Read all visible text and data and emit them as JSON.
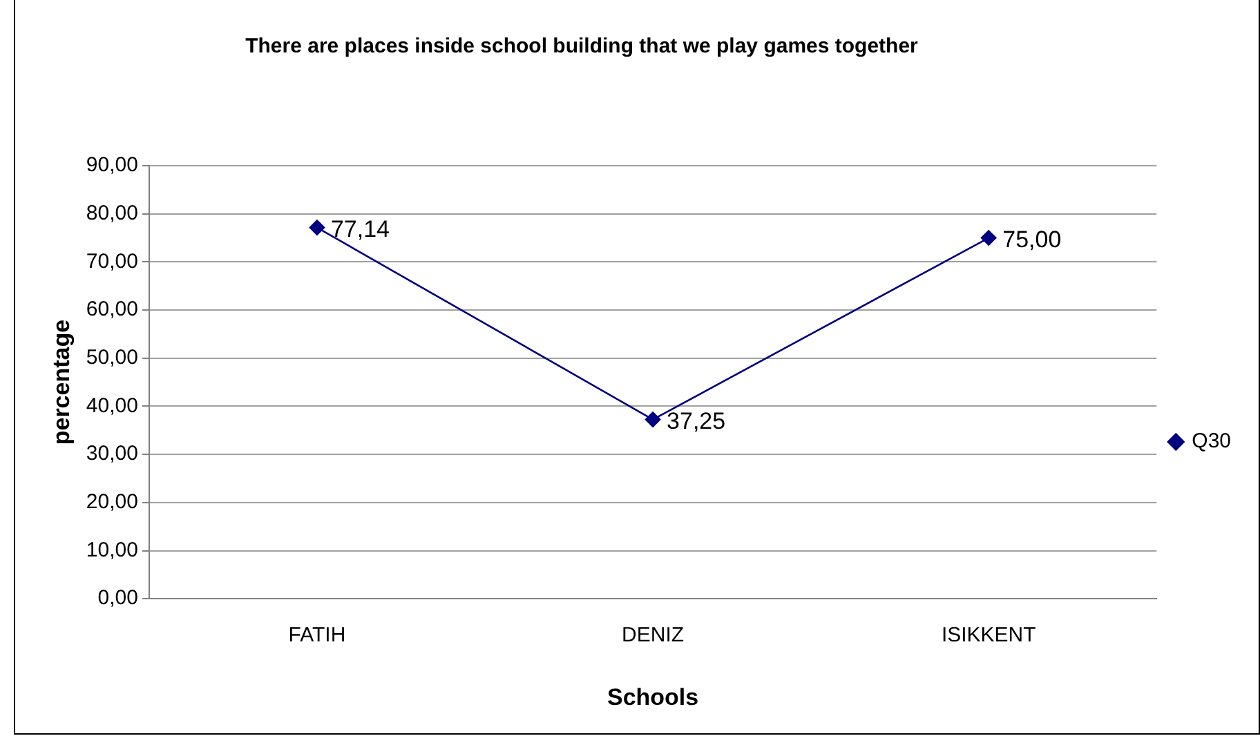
{
  "chart_data": {
    "type": "line",
    "title": "There are places inside school building that we play games together",
    "xlabel": "Schools",
    "ylabel": "percentage",
    "categories": [
      "FATIH",
      "DENIZ",
      "ISIKKENT"
    ],
    "series": [
      {
        "name": "Q30",
        "color": "#000080",
        "values": [
          77.14,
          37.25,
          75.0
        ],
        "value_labels": [
          "77,14",
          "37,25",
          "75,00"
        ]
      }
    ],
    "ylim": [
      0,
      90
    ],
    "yticks": [
      {
        "value": 0,
        "label": "0,00"
      },
      {
        "value": 10,
        "label": "10,00"
      },
      {
        "value": 20,
        "label": "20,00"
      },
      {
        "value": 30,
        "label": "30,00"
      },
      {
        "value": 40,
        "label": "40,00"
      },
      {
        "value": 50,
        "label": "50,00"
      },
      {
        "value": 60,
        "label": "60,00"
      },
      {
        "value": 70,
        "label": "70,00"
      },
      {
        "value": 80,
        "label": "80,00"
      },
      {
        "value": 90,
        "label": "90,00"
      }
    ],
    "grid": "y",
    "legend": "right",
    "marker": "diamond",
    "line_style": "solid"
  }
}
